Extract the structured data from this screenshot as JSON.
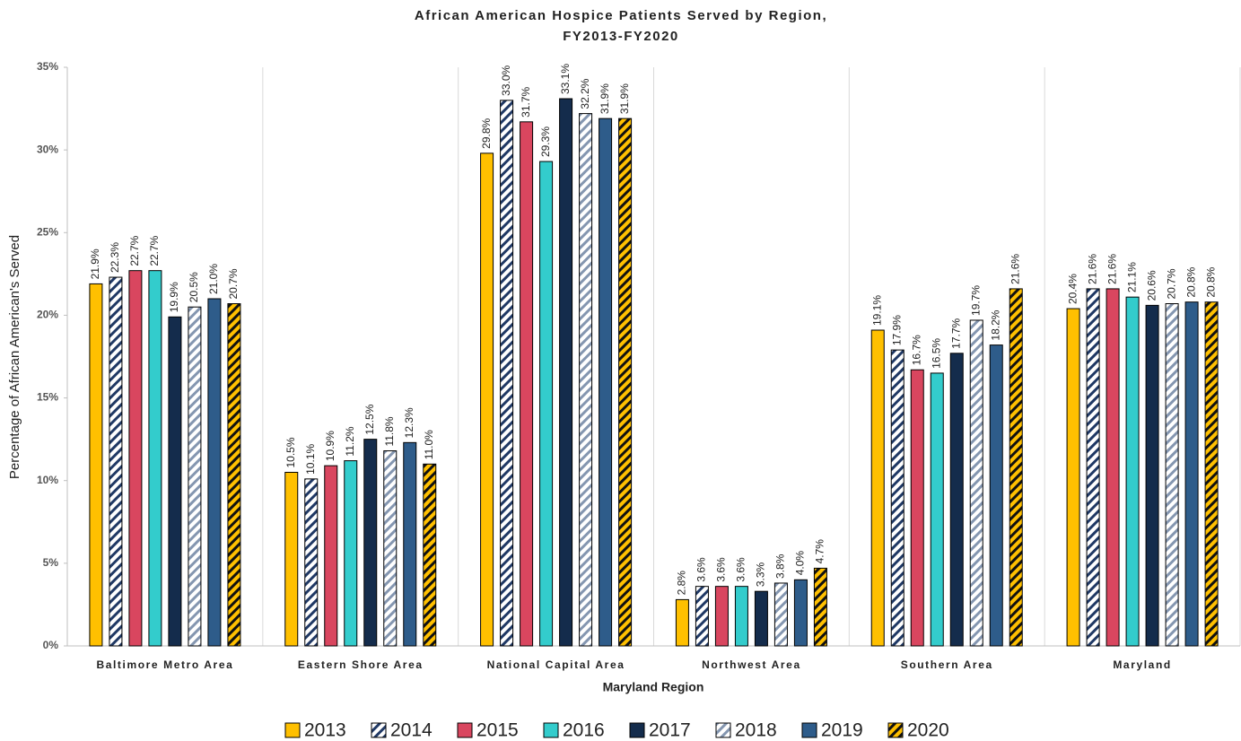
{
  "chart_data": {
    "type": "bar",
    "title": [
      "African American Hospice Patients Served by Region,",
      "FY2013-FY2020"
    ],
    "x_label": "Maryland Region",
    "y_label": "Percentage of African American's Served",
    "categories": [
      "Baltimore Metro Area",
      "Eastern Shore Area",
      "National Capital Area",
      "Northwest Area",
      "Southern Area",
      "Maryland"
    ],
    "ylim": [
      0,
      35
    ],
    "yticks": [
      {
        "value": 0,
        "label": "0%"
      },
      {
        "value": 5,
        "label": "5%"
      },
      {
        "value": 10,
        "label": "10%"
      },
      {
        "value": 15,
        "label": "15%"
      },
      {
        "value": 20,
        "label": "20%"
      },
      {
        "value": 25,
        "label": "25%"
      },
      {
        "value": 30,
        "label": "30%"
      },
      {
        "value": 35,
        "label": "35%"
      }
    ],
    "grid": false,
    "legend": "bottom",
    "series": [
      {
        "name": "2013",
        "color": "#FFC000",
        "values": [
          21.9,
          10.5,
          29.8,
          2.8,
          19.1,
          20.4
        ],
        "value_labels": [
          "21.9%",
          "10.5%",
          "29.8%",
          "2.8%",
          "19.1%",
          "20.4%"
        ]
      },
      {
        "name": "2014",
        "color": "#ffffff",
        "hatch": "#1F3864",
        "values": [
          22.3,
          10.1,
          33.0,
          3.6,
          17.9,
          21.6
        ],
        "value_labels": [
          "22.3%",
          "10.1%",
          "33.0%",
          "3.6%",
          "17.9%",
          "21.6%"
        ]
      },
      {
        "name": "2015",
        "color": "#D9465F",
        "values": [
          22.7,
          10.9,
          31.7,
          3.6,
          16.7,
          21.6
        ],
        "value_labels": [
          "22.7%",
          "10.9%",
          "31.7%",
          "3.6%",
          "16.7%",
          "21.6%"
        ]
      },
      {
        "name": "2016",
        "color": "#33CCCC",
        "values": [
          22.7,
          11.2,
          29.3,
          3.6,
          16.5,
          21.1
        ],
        "value_labels": [
          "22.7%",
          "11.2%",
          "29.3%",
          "3.6%",
          "16.5%",
          "21.1%"
        ]
      },
      {
        "name": "2017",
        "color": "#142C4C",
        "values": [
          19.9,
          12.5,
          33.1,
          3.3,
          17.7,
          20.6
        ],
        "value_labels": [
          "19.9%",
          "12.5%",
          "33.1%",
          "3.3%",
          "17.7%",
          "20.6%"
        ]
      },
      {
        "name": "2018",
        "color": "#ffffff",
        "hatch": "#8496B0",
        "values": [
          20.5,
          11.8,
          32.2,
          3.8,
          19.7,
          20.7
        ],
        "value_labels": [
          "20.5%",
          "11.8%",
          "32.2%",
          "3.8%",
          "19.7%",
          "20.7%"
        ]
      },
      {
        "name": "2019",
        "color": "#2E5C8A",
        "values": [
          21.0,
          12.3,
          31.9,
          4.0,
          18.2,
          20.8
        ],
        "value_labels": [
          "21.0%",
          "12.3%",
          "31.9%",
          "4.0%",
          "18.2%",
          "20.8%"
        ]
      },
      {
        "name": "2020",
        "color": "#FFC000",
        "hatch": "#111111",
        "values": [
          20.7,
          11.0,
          31.9,
          4.7,
          21.6,
          20.8
        ],
        "value_labels": [
          "20.7%",
          "11.0%",
          "31.9%",
          "4.7%",
          "21.6%",
          "20.8%"
        ]
      }
    ]
  }
}
